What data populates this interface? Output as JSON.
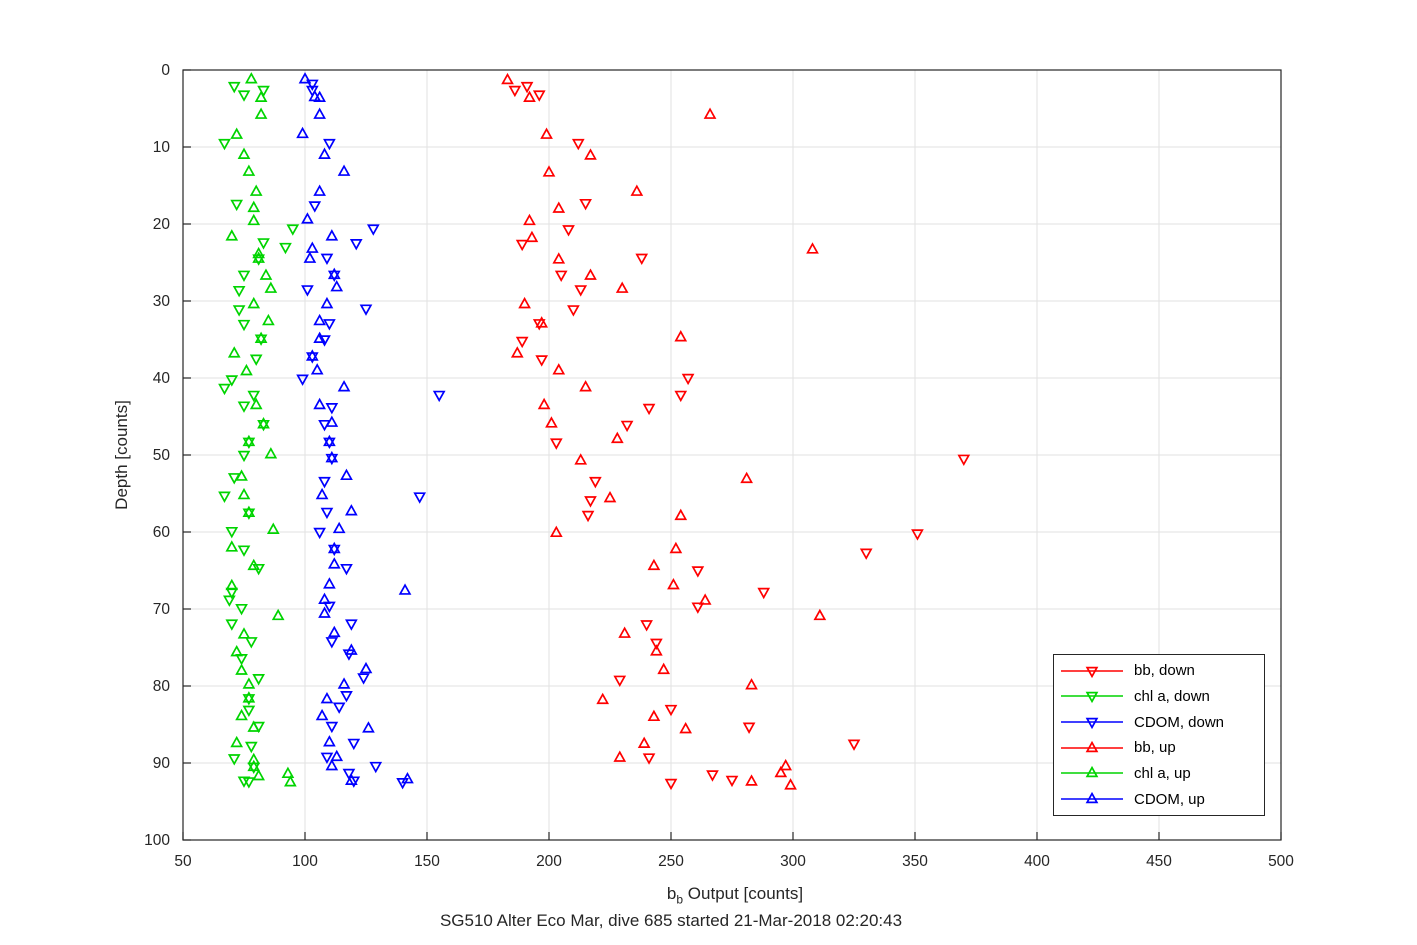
{
  "figure": {
    "background": "#ffffff",
    "axis_color": "#262626",
    "grid_color": "#e2e2e2",
    "tick_label_color": "#262626",
    "ylabel": "Depth [counts]",
    "xlabel_base": "b",
    "xlabel_sub": "b",
    "xlabel_rest": " Output [counts]",
    "subtitle": "SG510 Alter Eco Mar, dive 685 started 21-Mar-2018 02:20:43"
  },
  "chart_data": {
    "type": "scatter",
    "title": "SG510 Alter Eco Mar, dive 685 started 21-Mar-2018 02:20:43",
    "xlabel": "b_b Output [counts]",
    "ylabel": "Depth [counts]",
    "xlim": [
      50,
      500
    ],
    "ylim": [
      0,
      100
    ],
    "y_inverted": true,
    "grid": true,
    "legend_position": "inside lower right",
    "xticks": [
      50,
      100,
      150,
      200,
      250,
      300,
      350,
      400,
      450,
      500
    ],
    "yticks": [
      0,
      10,
      20,
      30,
      40,
      50,
      60,
      70,
      80,
      90,
      100
    ],
    "series": [
      {
        "name": "bb, down",
        "color": "#ff0000",
        "marker": "triangle-down",
        "points": [
          [
            186,
            2.6
          ],
          [
            191,
            2.1
          ],
          [
            196,
            3.2
          ],
          [
            212,
            9.5
          ],
          [
            215,
            17.3
          ],
          [
            208,
            20.7
          ],
          [
            189,
            22.6
          ],
          [
            238,
            24.4
          ],
          [
            205,
            26.6
          ],
          [
            213,
            28.5
          ],
          [
            210,
            31.1
          ],
          [
            196,
            32.9
          ],
          [
            189,
            35.2
          ],
          [
            197,
            37.6
          ],
          [
            257,
            40.0
          ],
          [
            254,
            42.2
          ],
          [
            241,
            43.9
          ],
          [
            232,
            46.1
          ],
          [
            203,
            48.4
          ],
          [
            370,
            50.5
          ],
          [
            219,
            53.4
          ],
          [
            217,
            55.9
          ],
          [
            216,
            57.8
          ],
          [
            351,
            60.2
          ],
          [
            330,
            62.7
          ],
          [
            261,
            65.0
          ],
          [
            288,
            67.8
          ],
          [
            261,
            69.7
          ],
          [
            240,
            72.0
          ],
          [
            244,
            74.4
          ],
          [
            229,
            79.2
          ],
          [
            250,
            83.0
          ],
          [
            282,
            85.3
          ],
          [
            325,
            87.5
          ],
          [
            241,
            89.3
          ],
          [
            267,
            91.5
          ],
          [
            275,
            92.2
          ],
          [
            250,
            92.6
          ]
        ]
      },
      {
        "name": "chl a, down",
        "color": "#00d400",
        "marker": "triangle-down",
        "points": [
          [
            71,
            2.1
          ],
          [
            83,
            2.6
          ],
          [
            75,
            3.2
          ],
          [
            67,
            9.5
          ],
          [
            72,
            17.4
          ],
          [
            95,
            20.6
          ],
          [
            83,
            22.4
          ],
          [
            92,
            23.0
          ],
          [
            81,
            24.5
          ],
          [
            75,
            26.6
          ],
          [
            73,
            28.6
          ],
          [
            73,
            31.1
          ],
          [
            75,
            33.0
          ],
          [
            82,
            34.9
          ],
          [
            80,
            37.5
          ],
          [
            70,
            40.2
          ],
          [
            67,
            41.3
          ],
          [
            79,
            42.2
          ],
          [
            75,
            43.6
          ],
          [
            83,
            46.0
          ],
          [
            77,
            48.3
          ],
          [
            75,
            50.0
          ],
          [
            71,
            52.9
          ],
          [
            67,
            55.3
          ],
          [
            77,
            57.5
          ],
          [
            70,
            59.9
          ],
          [
            75,
            62.3
          ],
          [
            81,
            64.7
          ],
          [
            70,
            67.8
          ],
          [
            69,
            68.8
          ],
          [
            74,
            69.9
          ],
          [
            70,
            71.9
          ],
          [
            78,
            74.2
          ],
          [
            74,
            76.4
          ],
          [
            81,
            79.0
          ],
          [
            77,
            81.6
          ],
          [
            77,
            83.1
          ],
          [
            81,
            85.2
          ],
          [
            78,
            87.8
          ],
          [
            71,
            89.4
          ],
          [
            79,
            90.5
          ],
          [
            75,
            92.3
          ],
          [
            77,
            92.4
          ]
        ]
      },
      {
        "name": "CDOM, down",
        "color": "#0000ff",
        "marker": "triangle-down",
        "points": [
          [
            103,
            1.8
          ],
          [
            103,
            2.6
          ],
          [
            110,
            9.5
          ],
          [
            104,
            17.6
          ],
          [
            128,
            20.6
          ],
          [
            121,
            22.5
          ],
          [
            109,
            24.4
          ],
          [
            112,
            26.6
          ],
          [
            101,
            28.5
          ],
          [
            125,
            31.0
          ],
          [
            110,
            32.9
          ],
          [
            108,
            35.0
          ],
          [
            103,
            37.2
          ],
          [
            99,
            40.1
          ],
          [
            155,
            42.2
          ],
          [
            111,
            43.8
          ],
          [
            108,
            46.0
          ],
          [
            110,
            48.3
          ],
          [
            111,
            50.4
          ],
          [
            108,
            53.4
          ],
          [
            147,
            55.4
          ],
          [
            109,
            57.4
          ],
          [
            106,
            60.0
          ],
          [
            112,
            62.2
          ],
          [
            117,
            64.7
          ],
          [
            110,
            69.6
          ],
          [
            119,
            71.9
          ],
          [
            111,
            74.2
          ],
          [
            118,
            75.8
          ],
          [
            124,
            78.9
          ],
          [
            117,
            81.2
          ],
          [
            114,
            82.7
          ],
          [
            111,
            85.2
          ],
          [
            120,
            87.4
          ],
          [
            109,
            89.2
          ],
          [
            129,
            90.4
          ],
          [
            118,
            91.3
          ],
          [
            120,
            92.3
          ],
          [
            140,
            92.5
          ]
        ]
      },
      {
        "name": "bb, up",
        "color": "#ff0000",
        "marker": "triangle-up",
        "points": [
          [
            183,
            1.3
          ],
          [
            192,
            3.6
          ],
          [
            266,
            5.8
          ],
          [
            199,
            8.4
          ],
          [
            217,
            11.1
          ],
          [
            200,
            13.3
          ],
          [
            236,
            15.8
          ],
          [
            204,
            18.0
          ],
          [
            192,
            19.6
          ],
          [
            193,
            21.8
          ],
          [
            308,
            23.3
          ],
          [
            204,
            24.6
          ],
          [
            217,
            26.7
          ],
          [
            230,
            28.4
          ],
          [
            190,
            30.4
          ],
          [
            197,
            32.9
          ],
          [
            254,
            34.7
          ],
          [
            187,
            36.8
          ],
          [
            204,
            39.0
          ],
          [
            215,
            41.2
          ],
          [
            198,
            43.5
          ],
          [
            201,
            45.9
          ],
          [
            228,
            47.9
          ],
          [
            213,
            50.7
          ],
          [
            281,
            53.1
          ],
          [
            225,
            55.6
          ],
          [
            254,
            57.9
          ],
          [
            203,
            60.1
          ],
          [
            252,
            62.2
          ],
          [
            243,
            64.4
          ],
          [
            251,
            66.9
          ],
          [
            264,
            68.9
          ],
          [
            311,
            70.9
          ],
          [
            231,
            73.2
          ],
          [
            244,
            75.5
          ],
          [
            247,
            77.9
          ],
          [
            283,
            79.9
          ],
          [
            222,
            81.8
          ],
          [
            243,
            84.0
          ],
          [
            256,
            85.6
          ],
          [
            239,
            87.5
          ],
          [
            229,
            89.3
          ],
          [
            297,
            90.4
          ],
          [
            295,
            91.3
          ],
          [
            283,
            92.4
          ],
          [
            299,
            92.9
          ]
        ]
      },
      {
        "name": "chl a, up",
        "color": "#00d400",
        "marker": "triangle-up",
        "points": [
          [
            78,
            1.2
          ],
          [
            82,
            3.6
          ],
          [
            82,
            5.8
          ],
          [
            72,
            8.4
          ],
          [
            75,
            11.0
          ],
          [
            77,
            13.2
          ],
          [
            80,
            15.8
          ],
          [
            79,
            17.9
          ],
          [
            79,
            19.6
          ],
          [
            70,
            21.6
          ],
          [
            81,
            23.9
          ],
          [
            81,
            24.5
          ],
          [
            84,
            26.7
          ],
          [
            86,
            28.4
          ],
          [
            79,
            30.4
          ],
          [
            85,
            32.6
          ],
          [
            82,
            34.9
          ],
          [
            71,
            36.8
          ],
          [
            76,
            39.1
          ],
          [
            80,
            43.5
          ],
          [
            83,
            46.0
          ],
          [
            77,
            48.3
          ],
          [
            86,
            49.9
          ],
          [
            74,
            52.8
          ],
          [
            75,
            55.2
          ],
          [
            77,
            57.5
          ],
          [
            87,
            59.7
          ],
          [
            70,
            62.0
          ],
          [
            79,
            64.4
          ],
          [
            70,
            67.0
          ],
          [
            89,
            70.9
          ],
          [
            75,
            73.3
          ],
          [
            72,
            75.6
          ],
          [
            74,
            78.0
          ],
          [
            77,
            79.8
          ],
          [
            77,
            81.6
          ],
          [
            74,
            83.9
          ],
          [
            79,
            85.4
          ],
          [
            72,
            87.4
          ],
          [
            79,
            89.6
          ],
          [
            79,
            90.5
          ],
          [
            81,
            91.7
          ],
          [
            93,
            91.4
          ],
          [
            94,
            92.5
          ]
        ]
      },
      {
        "name": "CDOM, up",
        "color": "#0000ff",
        "marker": "triangle-up",
        "points": [
          [
            100,
            1.2
          ],
          [
            104,
            3.5
          ],
          [
            106,
            3.6
          ],
          [
            106,
            5.8
          ],
          [
            99,
            8.3
          ],
          [
            108,
            11.0
          ],
          [
            116,
            13.2
          ],
          [
            106,
            15.8
          ],
          [
            101,
            19.4
          ],
          [
            111,
            21.6
          ],
          [
            103,
            23.2
          ],
          [
            102,
            24.5
          ],
          [
            112,
            26.6
          ],
          [
            113,
            28.2
          ],
          [
            109,
            30.4
          ],
          [
            106,
            32.6
          ],
          [
            106,
            34.9
          ],
          [
            103,
            37.2
          ],
          [
            105,
            39.0
          ],
          [
            116,
            41.2
          ],
          [
            106,
            43.5
          ],
          [
            111,
            45.8
          ],
          [
            110,
            48.3
          ],
          [
            111,
            50.4
          ],
          [
            117,
            52.7
          ],
          [
            107,
            55.2
          ],
          [
            119,
            57.3
          ],
          [
            114,
            59.6
          ],
          [
            112,
            62.2
          ],
          [
            112,
            64.2
          ],
          [
            110,
            66.8
          ],
          [
            141,
            67.6
          ],
          [
            108,
            68.8
          ],
          [
            108,
            70.6
          ],
          [
            112,
            73.1
          ],
          [
            119,
            75.4
          ],
          [
            125,
            77.8
          ],
          [
            116,
            79.8
          ],
          [
            109,
            81.7
          ],
          [
            107,
            83.9
          ],
          [
            126,
            85.5
          ],
          [
            110,
            87.3
          ],
          [
            113,
            89.2
          ],
          [
            111,
            90.4
          ],
          [
            119,
            92.3
          ],
          [
            142,
            92.1
          ]
        ]
      }
    ]
  }
}
